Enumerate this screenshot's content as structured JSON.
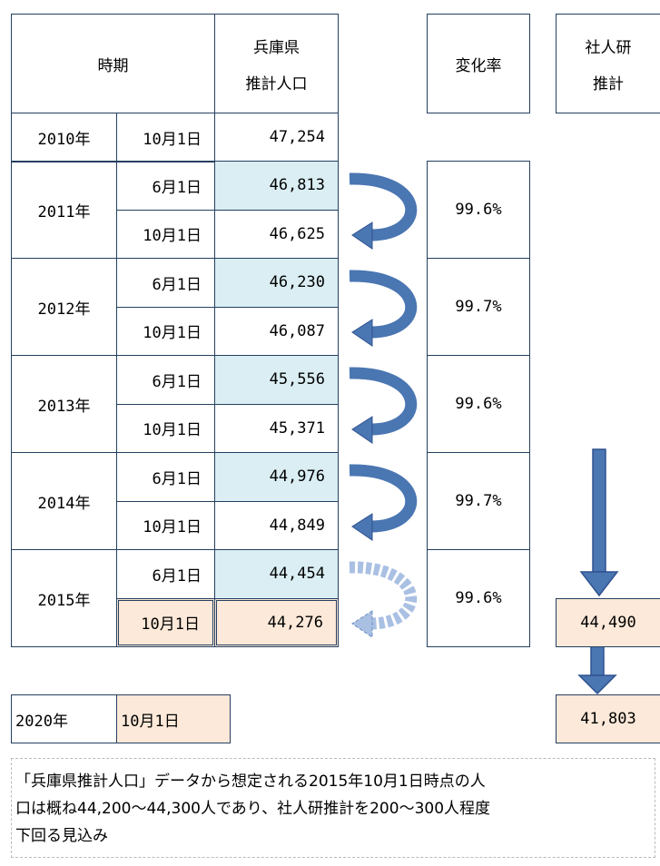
{
  "table": {
    "header": {
      "period": "時期",
      "pref": [
        "兵庫県",
        "推計人口"
      ],
      "rate": "変化率",
      "ipss": [
        "社人研",
        "推計"
      ]
    },
    "first": {
      "year": "2010年",
      "date": "10月1日",
      "value": "47,254"
    },
    "groups": [
      {
        "year": "2011年",
        "rows": [
          {
            "date": "6月1日",
            "value": "46,813"
          },
          {
            "date": "10月1日",
            "value": "46,625"
          }
        ],
        "rate": "99.6%"
      },
      {
        "year": "2012年",
        "rows": [
          {
            "date": "6月1日",
            "value": "46,230"
          },
          {
            "date": "10月1日",
            "value": "46,087"
          }
        ],
        "rate": "99.7%"
      },
      {
        "year": "2013年",
        "rows": [
          {
            "date": "6月1日",
            "value": "45,556"
          },
          {
            "date": "10月1日",
            "value": "45,371"
          }
        ],
        "rate": "99.6%"
      },
      {
        "year": "2014年",
        "rows": [
          {
            "date": "6月1日",
            "value": "44,976"
          },
          {
            "date": "10月1日",
            "value": "44,849"
          }
        ],
        "rate": "99.7%"
      },
      {
        "year": "2015年",
        "rows": [
          {
            "date": "6月1日",
            "value": "44,454"
          },
          {
            "date": "10月1日",
            "value": "44,276"
          }
        ],
        "rate": "99.6%",
        "ipss": "44,490"
      }
    ],
    "future": {
      "year": "2020年",
      "date": "10月1日",
      "ipss": "41,803"
    }
  },
  "note": {
    "lines": [
      "「兵庫県推計人口」データから想定される2015年10月1日時点の人",
      "口は概ね44,200～44,300人であり、社人研推計を200～300人程度",
      "下回る見込み"
    ]
  }
}
